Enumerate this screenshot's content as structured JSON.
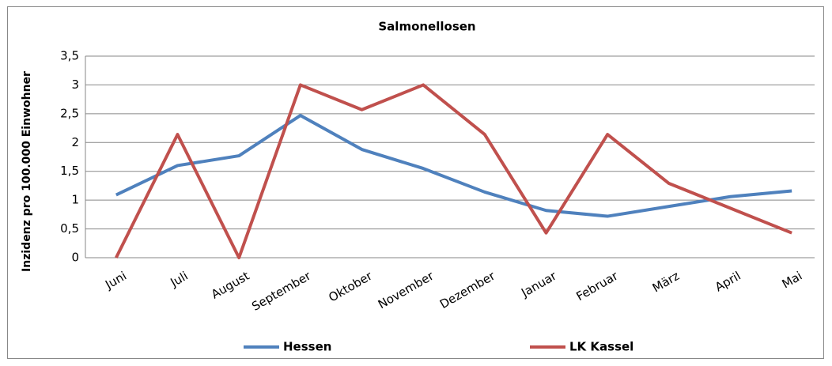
{
  "chart_data": {
    "type": "line",
    "title": "Salmonellosen",
    "y_label": "Inzidenz pro 100.000 Einwohner",
    "categories": [
      "Juni",
      "Juli",
      "August",
      "September",
      "Oktober",
      "November",
      "Dezember",
      "Januar",
      "Februar",
      "März",
      "April",
      "Mai"
    ],
    "series": [
      {
        "name": "Hessen",
        "color": "#4f81bd",
        "values": [
          1.09,
          1.6,
          1.77,
          2.47,
          1.88,
          1.55,
          1.14,
          0.82,
          0.72,
          0.89,
          1.06,
          1.16
        ]
      },
      {
        "name": "LK Kassel",
        "color": "#c0504d",
        "values": [
          0,
          2.14,
          0,
          3.0,
          2.57,
          3.0,
          2.14,
          0.43,
          2.14,
          1.29,
          0.86,
          0.43
        ]
      }
    ],
    "ylim": [
      0,
      3.5
    ],
    "yticks": [
      0,
      {
        "value": 0.5,
        "label": "0,5"
      },
      1,
      {
        "value": 1.5,
        "label": "1,5"
      },
      2,
      {
        "value": 2.5,
        "label": "2,5"
      },
      3,
      {
        "value": 3.5,
        "label": "3,5"
      }
    ],
    "grid": true,
    "legend": "bottom"
  }
}
